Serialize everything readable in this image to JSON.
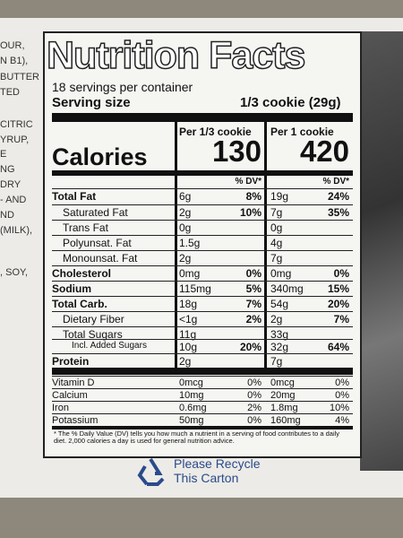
{
  "side_text": [
    "OUR,",
    "N B1),",
    "BUTTER",
    "TED",
    "CITRIC",
    "YRUP,",
    "E",
    "NG",
    "DRY",
    "- AND",
    "ND",
    "(MILK),",
    ", SOY,"
  ],
  "header": {
    "title": "Nutrition Facts",
    "servings": "18 servings per container",
    "serving_size_label": "Serving size",
    "serving_size": "1/3 cookie (29g)"
  },
  "columns": [
    "Per 1/3 cookie",
    "Per 1 cookie"
  ],
  "calories": {
    "label": "Calories",
    "values": [
      "130",
      "420"
    ]
  },
  "dv_header": "% DV*",
  "nutrients": [
    {
      "name": "Total Fat",
      "amount1": "6g",
      "dv1": "8%",
      "amount2": "19g",
      "dv2": "24%"
    },
    {
      "name": "Saturated Fat",
      "amount1": "2g",
      "dv1": "10%",
      "amount2": "7g",
      "dv2": "35%"
    },
    {
      "name": "Trans Fat",
      "amount1": "0g",
      "amount2": "0g"
    },
    {
      "name": "Polyunsat. Fat",
      "amount1": "1.5g",
      "amount2": "4g"
    },
    {
      "name": "Monounsat. Fat",
      "amount1": "2g",
      "amount2": "7g"
    },
    {
      "name": "Cholesterol",
      "amount1": "0mg",
      "dv1": "0%",
      "amount2": "0mg",
      "dv2": "0%"
    },
    {
      "name": "Sodium",
      "amount1": "115mg",
      "dv1": "5%",
      "amount2": "340mg",
      "dv2": "15%"
    },
    {
      "name": "Total Carb.",
      "amount1": "18g",
      "dv1": "7%",
      "amount2": "54g",
      "dv2": "20%"
    },
    {
      "name": "Dietary Fiber",
      "amount1": "<1g",
      "dv1": "2%",
      "amount2": "2g",
      "dv2": "7%"
    },
    {
      "name": "Total Sugars",
      "amount1": "11g",
      "amount2": "33g"
    },
    {
      "name": "Incl. Added Sugars",
      "amount1": "10g",
      "dv1": "20%",
      "amount2": "32g",
      "dv2": "64%"
    },
    {
      "name": "Protein",
      "amount1": "2g",
      "amount2": "7g"
    }
  ],
  "vitamins": [
    {
      "name": "Vitamin D",
      "amount1": "0mcg",
      "dv1": "0%",
      "amount2": "0mcg",
      "dv2": "0%"
    },
    {
      "name": "Calcium",
      "amount1": "10mg",
      "dv1": "0%",
      "amount2": "20mg",
      "dv2": "0%"
    },
    {
      "name": "Iron",
      "amount1": "0.6mg",
      "dv1": "2%",
      "amount2": "1.8mg",
      "dv2": "10%"
    },
    {
      "name": "Potassium",
      "amount1": "50mg",
      "dv1": "0%",
      "amount2": "160mg",
      "dv2": "4%"
    }
  ],
  "footnote": "* The % Daily Value (DV) tells you how much a nutrient in a serving of food contributes to a daily diet. 2,000 calories a day is used for general nutrition advice.",
  "recycle": [
    "Please Recycle",
    "This Carton"
  ]
}
